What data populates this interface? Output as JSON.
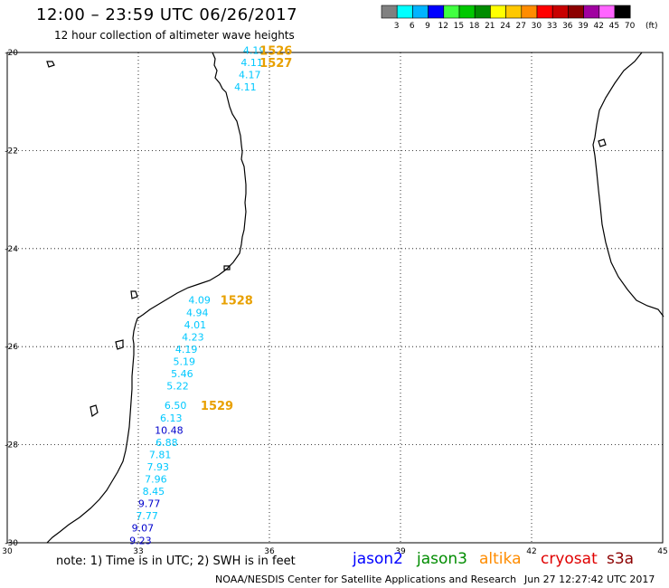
{
  "title": "12:00 – 23:59 UTC 06/26/2017",
  "subtitle": "12 hour collection of altimeter wave heights",
  "legend": {
    "unit": "(ft)",
    "bins": [
      {
        "label": "3",
        "color": "#808080"
      },
      {
        "label": "6",
        "color": "#00ffff"
      },
      {
        "label": "9",
        "color": "#00b4ff"
      },
      {
        "label": "12",
        "color": "#0000ff"
      },
      {
        "label": "15",
        "color": "#40ff40"
      },
      {
        "label": "18",
        "color": "#00c800"
      },
      {
        "label": "21",
        "color": "#008c00"
      },
      {
        "label": "24",
        "color": "#ffff00"
      },
      {
        "label": "27",
        "color": "#ffc800"
      },
      {
        "label": "30",
        "color": "#ff8c00"
      },
      {
        "label": "33",
        "color": "#ff0000"
      },
      {
        "label": "36",
        "color": "#c80000"
      },
      {
        "label": "39",
        "color": "#8c0000"
      },
      {
        "label": "42",
        "color": "#a000a0"
      },
      {
        "label": "45",
        "color": "#ff64ff"
      },
      {
        "label": "70",
        "color": "#000000"
      }
    ]
  },
  "axes": {
    "lon_ticks": [
      "30",
      "33",
      "36",
      "39",
      "42",
      "45"
    ],
    "lat_ticks": [
      "-20",
      "-22",
      "-24",
      "-26",
      "-28",
      "-30"
    ]
  },
  "passes": [
    {
      "label": "1526",
      "lon": 36.15,
      "lat": -19.95,
      "color": "#e8a000"
    },
    {
      "label": "1527",
      "lon": 36.15,
      "lat": -20.2,
      "color": "#e8a000"
    },
    {
      "label": "1528",
      "lon": 35.25,
      "lat": -25.05,
      "color": "#e8a000"
    },
    {
      "label": "1529",
      "lon": 34.8,
      "lat": -27.2,
      "color": "#e8a000"
    }
  ],
  "wave_heights": [
    {
      "value": "4.19",
      "lon": 35.65,
      "lat": -19.95,
      "color": "#00c8ff"
    },
    {
      "value": "4.11",
      "lon": 35.6,
      "lat": -20.2,
      "color": "#00c8ff"
    },
    {
      "value": "4.17",
      "lon": 35.55,
      "lat": -20.45,
      "color": "#00c8ff"
    },
    {
      "value": "4.11",
      "lon": 35.45,
      "lat": -20.7,
      "color": "#00c8ff"
    },
    {
      "value": "4.09",
      "lon": 34.4,
      "lat": -25.05,
      "color": "#00c8ff"
    },
    {
      "value": "4.94",
      "lon": 34.35,
      "lat": -25.3,
      "color": "#00c8ff"
    },
    {
      "value": "4.01",
      "lon": 34.3,
      "lat": -25.55,
      "color": "#00c8ff"
    },
    {
      "value": "4.23",
      "lon": 34.25,
      "lat": -25.8,
      "color": "#00c8ff"
    },
    {
      "value": "4.19",
      "lon": 34.1,
      "lat": -26.05,
      "color": "#00c8ff"
    },
    {
      "value": "5.19",
      "lon": 34.05,
      "lat": -26.3,
      "color": "#00c8ff"
    },
    {
      "value": "5.46",
      "lon": 34.0,
      "lat": -26.55,
      "color": "#00c8ff"
    },
    {
      "value": "5.22",
      "lon": 33.9,
      "lat": -26.8,
      "color": "#00c8ff"
    },
    {
      "value": "6.50",
      "lon": 33.85,
      "lat": -27.2,
      "color": "#00c8ff"
    },
    {
      "value": "6.13",
      "lon": 33.75,
      "lat": -27.45,
      "color": "#00c8ff"
    },
    {
      "value": "10.48",
      "lon": 33.7,
      "lat": -27.7,
      "color": "#0000cc"
    },
    {
      "value": "6.88",
      "lon": 33.65,
      "lat": -27.95,
      "color": "#00c8ff"
    },
    {
      "value": "7.81",
      "lon": 33.5,
      "lat": -28.2,
      "color": "#00c8ff"
    },
    {
      "value": "7.93",
      "lon": 33.45,
      "lat": -28.45,
      "color": "#00c8ff"
    },
    {
      "value": "7.96",
      "lon": 33.4,
      "lat": -28.7,
      "color": "#00c8ff"
    },
    {
      "value": "8.45",
      "lon": 33.35,
      "lat": -28.95,
      "color": "#00c8ff"
    },
    {
      "value": "9.77",
      "lon": 33.25,
      "lat": -29.2,
      "color": "#0000cc"
    },
    {
      "value": "7.77",
      "lon": 33.2,
      "lat": -29.45,
      "color": "#00c8ff"
    },
    {
      "value": "9.07",
      "lon": 33.1,
      "lat": -29.7,
      "color": "#0000cc"
    },
    {
      "value": "9.23",
      "lon": 33.05,
      "lat": -29.95,
      "color": "#0000cc"
    }
  ],
  "note": "note:  1) Time is in UTC;  2) SWH is in feet",
  "satellites": [
    {
      "name": "jason2",
      "color": "#0000ff"
    },
    {
      "name": "jason3",
      "color": "#008c00"
    },
    {
      "name": "altika",
      "color": "#ff8c00"
    },
    {
      "name": "cryosat",
      "color": "#e00000"
    },
    {
      "name": "s3a",
      "color": "#8c0000"
    }
  ],
  "credit": "NOAA/NESDIS Center for Satellite Applications and Research",
  "timestamp": "Jun 27 12:27:42 UTC 2017"
}
